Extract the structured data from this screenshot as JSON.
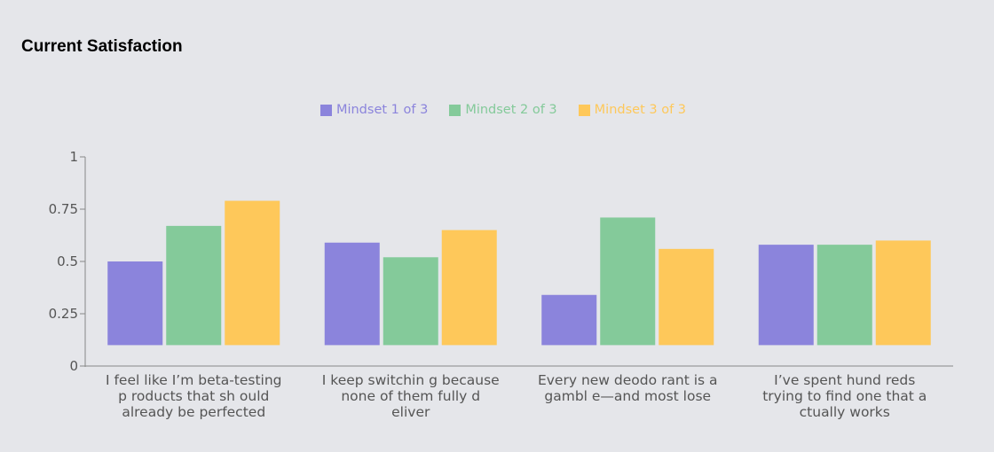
{
  "title": "Current Satisfaction",
  "chart_data": {
    "type": "bar",
    "title": "Current Satisfaction",
    "categories": [
      "I feel like I’m beta-testing p roducts that sh ould already be perfected",
      "I keep switchin g because none of them fully d eliver",
      "Every new deodo rant is a gambl e—and most lose",
      "I’ve spent hund reds trying to find one that a ctually works"
    ],
    "category_lines": [
      [
        "I feel like I’m beta-testing",
        "p roducts that sh ould",
        "already be perfected"
      ],
      [
        "I keep switchin g because",
        "none of them fully d",
        "eliver"
      ],
      [
        "Every new deodo rant is a",
        "gambl e—and most lose"
      ],
      [
        "I’ve spent hund reds",
        "trying to find one that a",
        "ctually works"
      ]
    ],
    "series": [
      {
        "name": "Mindset 1 of 3",
        "color": "#8b84dc",
        "values": [
          0.5,
          0.59,
          0.34,
          0.58
        ]
      },
      {
        "name": "Mindset 2 of 3",
        "color": "#84ca9a",
        "values": [
          0.67,
          0.52,
          0.71,
          0.58
        ]
      },
      {
        "name": "Mindset 3 of 3",
        "color": "#fec85a",
        "values": [
          0.79,
          0.65,
          0.56,
          0.6
        ]
      }
    ],
    "bar_floor": 0.1,
    "yticks": [
      "0",
      "0.25",
      "0.5",
      "0.75",
      "1"
    ],
    "ylim": [
      0,
      1
    ],
    "legend_position": "top-center",
    "grid": false
  }
}
